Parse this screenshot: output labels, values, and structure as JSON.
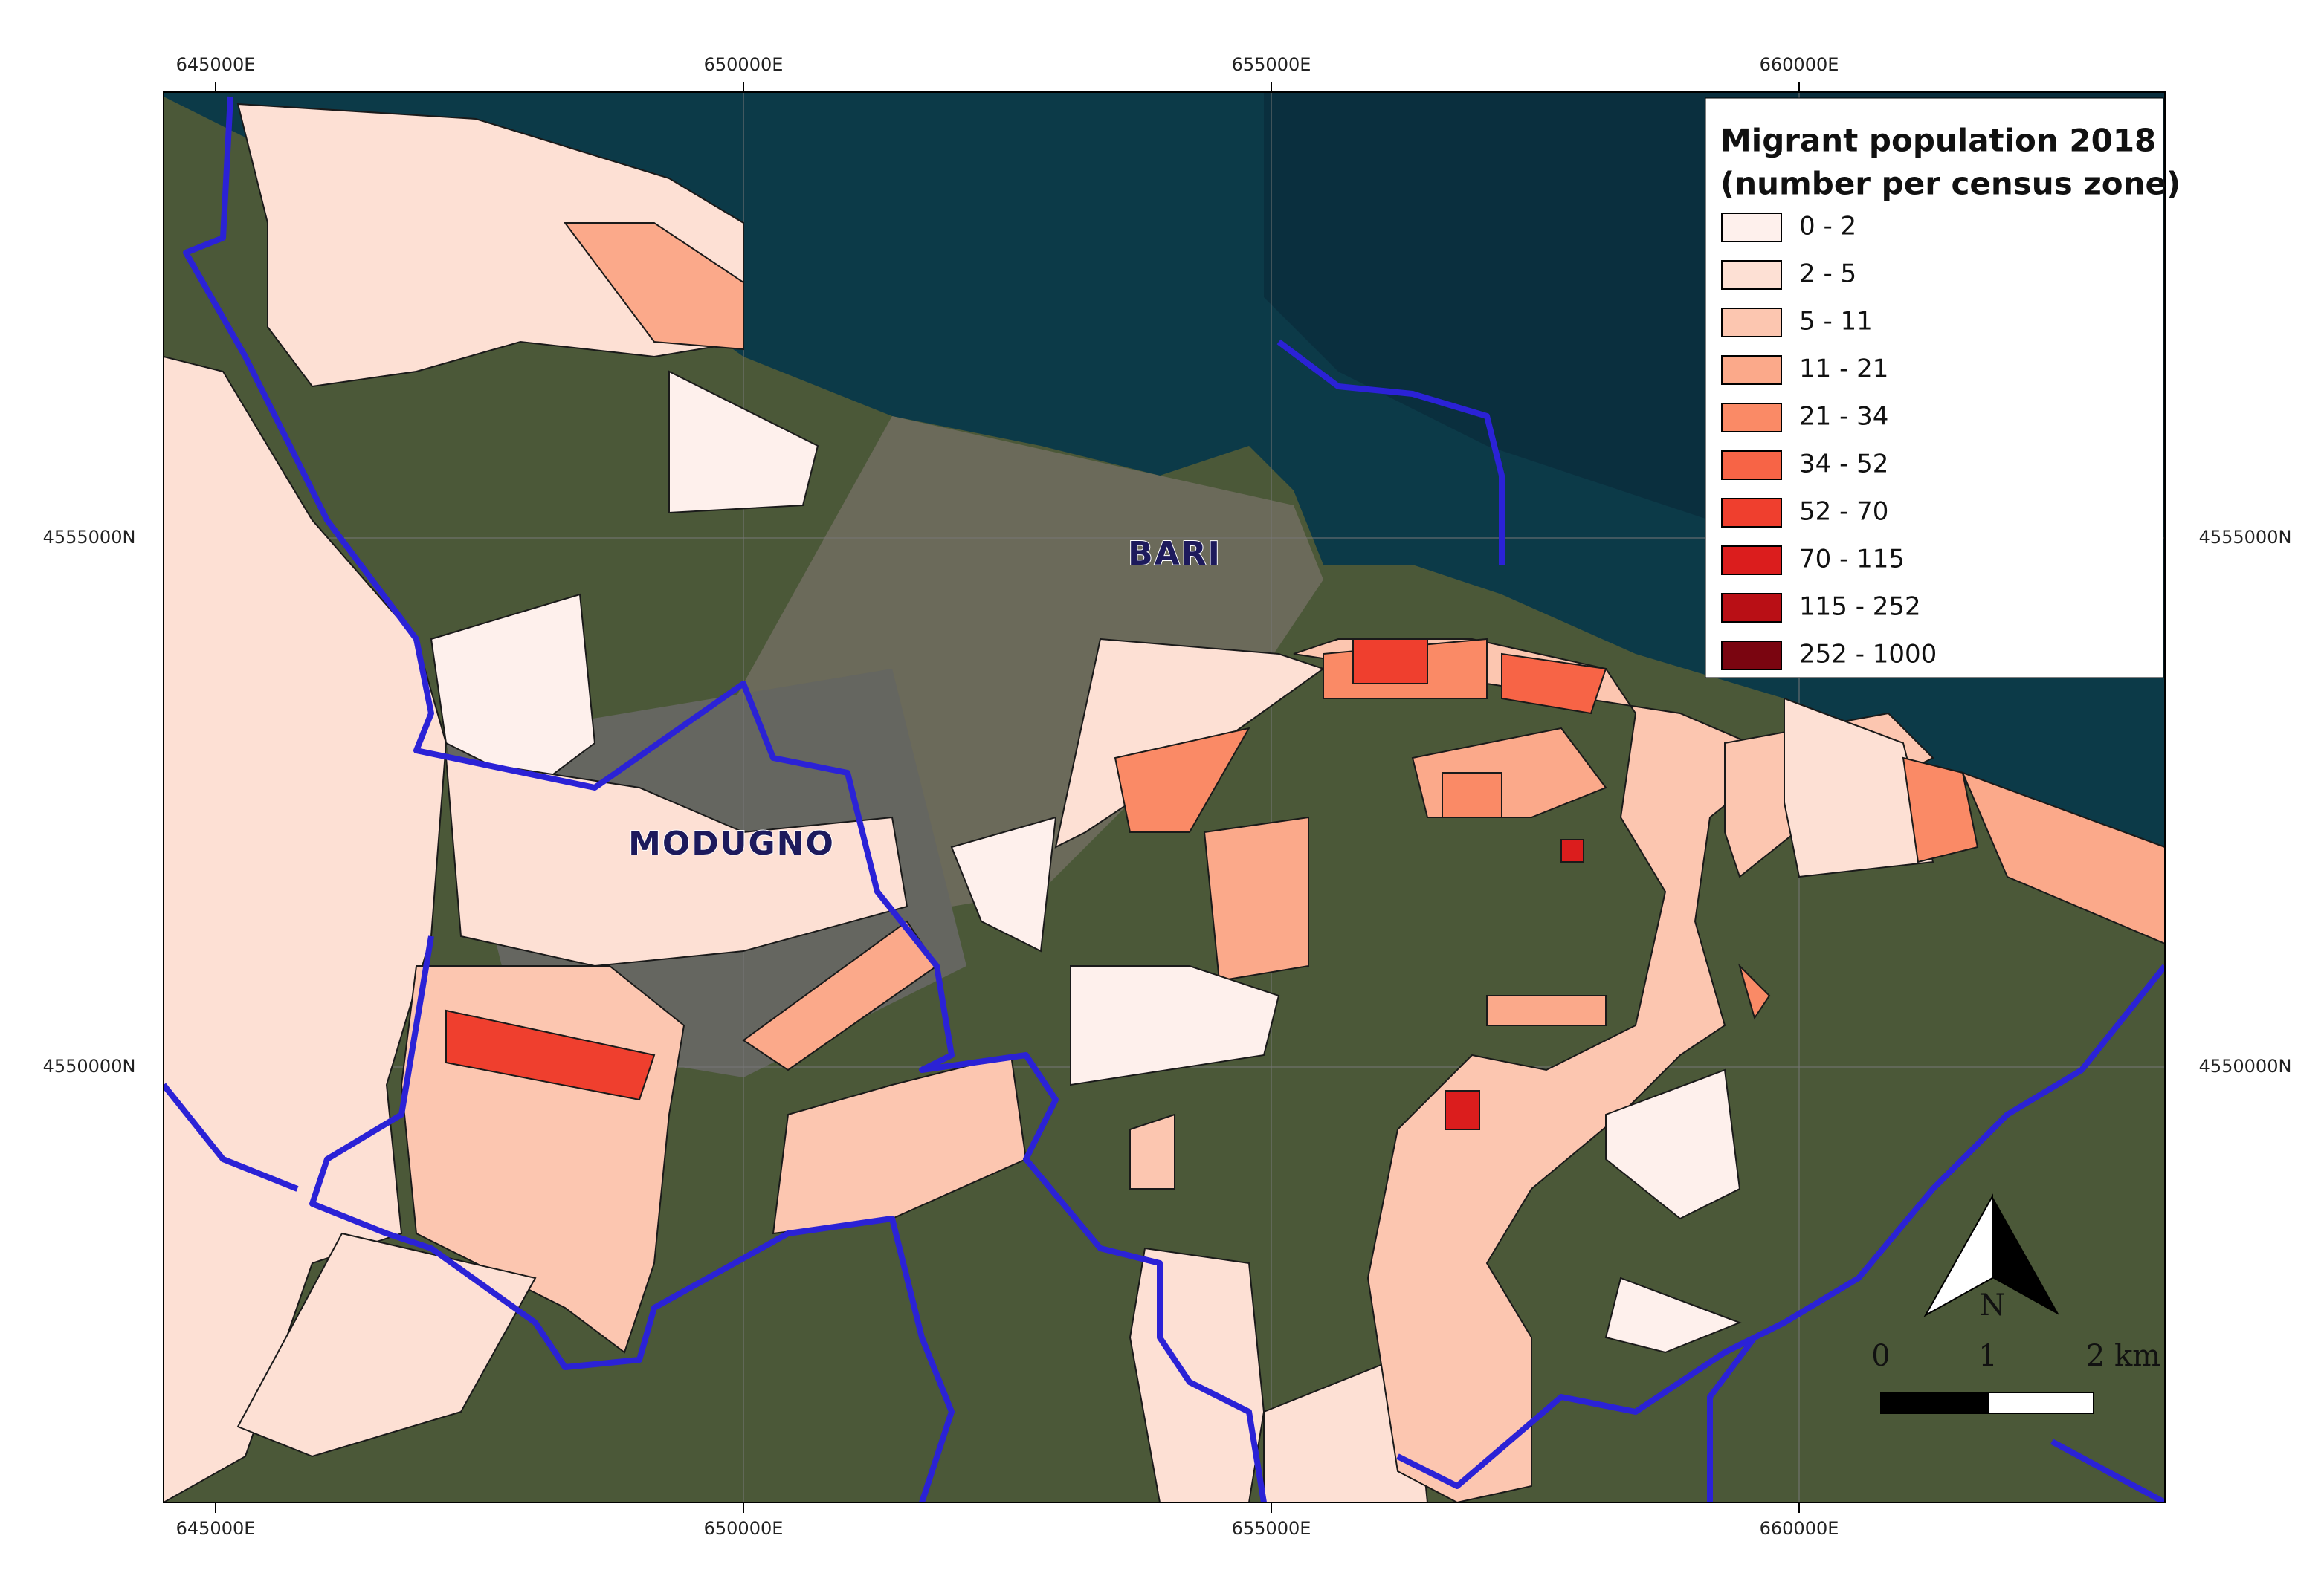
{
  "map": {
    "legend": {
      "title": [
        "Migrant population 2018",
        "(number per census zone)"
      ],
      "classes": [
        {
          "label": "0 - 2",
          "color": "#fef0ec"
        },
        {
          "label": "2 - 5",
          "color": "#fde0d4"
        },
        {
          "label": "5 - 11",
          "color": "#fcc6b0"
        },
        {
          "label": "11 - 21",
          "color": "#fba98a"
        },
        {
          "label": "21 - 34",
          "color": "#fa8a66"
        },
        {
          "label": "34 - 52",
          "color": "#f76446"
        },
        {
          "label": "52 - 70",
          "color": "#ef3f2e"
        },
        {
          "label": "70 - 115",
          "color": "#db1d1d"
        },
        {
          "label": "115 - 252",
          "color": "#b90f15"
        },
        {
          "label": "252 - 1000",
          "color": "#7a0510"
        }
      ]
    },
    "grid": {
      "x_labels": [
        "645000E",
        "650000E",
        "655000E",
        "660000E"
      ],
      "y_labels": [
        "4555000N",
        "4550000N"
      ]
    },
    "places": [
      "BARI",
      "MODUGNO"
    ],
    "north_arrow": "N",
    "scale_bar": [
      "0",
      "1",
      "2 km"
    ]
  }
}
